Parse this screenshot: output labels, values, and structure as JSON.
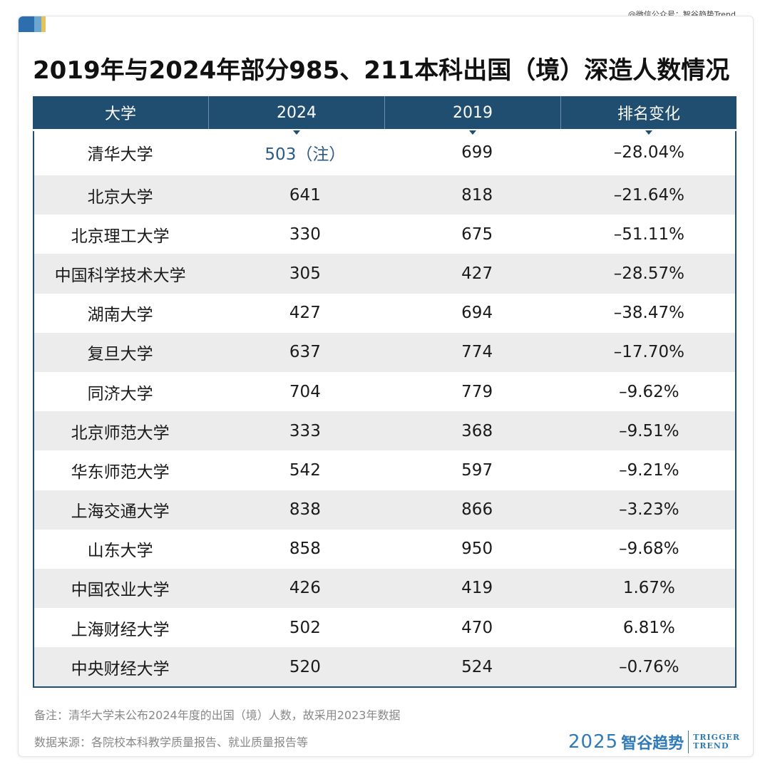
{
  "watermark": "@微信公众号：智谷趋势Trend",
  "title": "2019年与2024年部分985、211本科出国（境）深造人数情况",
  "table": {
    "headers": [
      "大学",
      "2024",
      "2019",
      "排名变化"
    ],
    "rows": [
      {
        "name": "清华大学",
        "y2024": "503（注）",
        "y2019": "699",
        "change": "–28.04%"
      },
      {
        "name": "北京大学",
        "y2024": "641",
        "y2019": "818",
        "change": "–21.64%"
      },
      {
        "name": "北京理工大学",
        "y2024": "330",
        "y2019": "675",
        "change": "–51.11%"
      },
      {
        "name": "中国科学技术大学",
        "y2024": "305",
        "y2019": "427",
        "change": "–28.57%"
      },
      {
        "name": "湖南大学",
        "y2024": "427",
        "y2019": "694",
        "change": "–38.47%"
      },
      {
        "name": "复旦大学",
        "y2024": "637",
        "y2019": "774",
        "change": "–17.70%"
      },
      {
        "name": "同济大学",
        "y2024": "704",
        "y2019": "779",
        "change": "–9.62%"
      },
      {
        "name": "北京师范大学",
        "y2024": "333",
        "y2019": "368",
        "change": "–9.51%"
      },
      {
        "name": "华东师范大学",
        "y2024": "542",
        "y2019": "597",
        "change": "–9.21%"
      },
      {
        "name": "上海交通大学",
        "y2024": "838",
        "y2019": "866",
        "change": "–3.23%"
      },
      {
        "name": "山东大学",
        "y2024": "858",
        "y2019": "950",
        "change": "–9.68%"
      },
      {
        "name": "中国农业大学",
        "y2024": "426",
        "y2019": "419",
        "change": "1.67%"
      },
      {
        "name": "上海财经大学",
        "y2024": "502",
        "y2019": "470",
        "change": "6.81%"
      },
      {
        "name": "中央财经大学",
        "y2024": "520",
        "y2019": "524",
        "change": "–0.76%"
      }
    ]
  },
  "notes": {
    "remark": "备注：清华大学未公布2024年度的出国（境）人数，故采用2023年数据",
    "source": "数据来源：各院校本科教学质量报告、就业质量报告等"
  },
  "logo": {
    "year": "2025",
    "brand": "智谷趋势",
    "en_line1": "TRIGGER",
    "en_line2": "TREND"
  },
  "colors": {
    "header_bg": "#1f4e70",
    "alt_row": "#ececec",
    "accent_blue": "#2d6fae",
    "logo_blue": "#2f7ab8"
  }
}
